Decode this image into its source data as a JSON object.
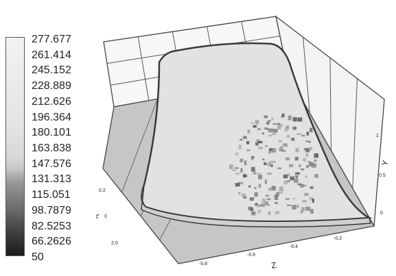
{
  "chart_data": {
    "type": "surface-3d",
    "title": "",
    "colorbar": {
      "labels": [
        "277.677",
        "261.414",
        "245.152",
        "228.889",
        "212.626",
        "196.364",
        "180.101",
        "163.838",
        "147.576",
        "131.313",
        "115.051",
        "98.7879",
        "82.5253",
        "66.2626",
        "50"
      ],
      "min": 50,
      "max": 277.677,
      "colormap": "grayscale"
    },
    "axes": {
      "x": {
        "label": "X",
        "tick_labels": [
          "0.2",
          "0",
          "2.0"
        ]
      },
      "y": {
        "label": "Y",
        "tick_labels": [
          "1",
          "0.5",
          "0"
        ]
      },
      "z": {
        "label": "Z",
        "tick_labels": [
          "-0.8",
          "-0.6",
          "-0.4",
          "-0.2"
        ]
      }
    },
    "surface": {
      "base_value_approx": 250,
      "dark_region": "speckled dark cluster in lower-right quadrant of surface, values down to about 100"
    }
  }
}
